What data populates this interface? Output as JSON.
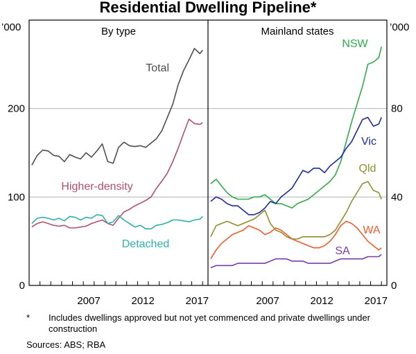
{
  "chart_data": {
    "title": "Residential Dwelling Pipeline*",
    "footnote_mark": "*",
    "footnote": "Includes dwellings approved but not yet commenced and private dwellings under construction",
    "sources": "Sources: ABS; RBA",
    "panels": [
      {
        "type": "line",
        "title": "By type",
        "ylabel": "’000",
        "ylim": [
          0,
          300
        ],
        "yticks": [
          0,
          100,
          200
        ],
        "xlim": [
          2002.0,
          2018.5
        ],
        "xticks": [
          2007,
          2012,
          2017
        ],
        "gridlines": [
          100,
          200
        ],
        "series": [
          {
            "name": "Total",
            "color": "#4d4d4d",
            "x": [
              2002.25,
              2002.75,
              2003.25,
              2003.75,
              2004.25,
              2004.75,
              2005.25,
              2005.75,
              2006.25,
              2006.75,
              2007.25,
              2007.75,
              2008.25,
              2008.75,
              2009.25,
              2009.75,
              2010.25,
              2010.75,
              2011.25,
              2011.75,
              2012.25,
              2012.75,
              2013.25,
              2013.75,
              2014.25,
              2014.75,
              2015.25,
              2015.75,
              2016.25,
              2016.75,
              2017.25,
              2017.75,
              2018.0
            ],
            "y": [
              136,
              147,
              153,
              152,
              147,
              146,
              140,
              148,
              145,
              143,
              150,
              145,
              152,
              160,
              140,
              138,
              156,
              162,
              158,
              157,
              158,
              156,
              161,
              166,
              175,
              190,
              205,
              227,
              243,
              255,
              268,
              262,
              266
            ]
          },
          {
            "name": "Higher-density",
            "color": "#b14f6a",
            "x": [
              2002.25,
              2002.75,
              2003.25,
              2003.75,
              2004.25,
              2004.75,
              2005.25,
              2005.75,
              2006.25,
              2006.75,
              2007.25,
              2007.75,
              2008.25,
              2008.75,
              2009.25,
              2009.75,
              2010.25,
              2010.75,
              2011.25,
              2011.75,
              2012.25,
              2012.75,
              2013.25,
              2013.75,
              2014.25,
              2014.75,
              2015.25,
              2015.75,
              2016.25,
              2016.75,
              2017.25,
              2017.75,
              2018.0
            ],
            "y": [
              66,
              70,
              72,
              70,
              68,
              67,
              68,
              65,
              65,
              66,
              67,
              70,
              72,
              74,
              70,
              68,
              76,
              83,
              86,
              90,
              93,
              96,
              100,
              110,
              118,
              127,
              140,
              155,
              172,
              188,
              183,
              182,
              184
            ]
          },
          {
            "name": "Detached",
            "color": "#2ab0a8",
            "x": [
              2002.25,
              2002.75,
              2003.25,
              2003.75,
              2004.25,
              2004.75,
              2005.25,
              2005.75,
              2006.25,
              2006.75,
              2007.25,
              2007.75,
              2008.25,
              2008.75,
              2009.25,
              2009.75,
              2010.25,
              2010.75,
              2011.25,
              2011.75,
              2012.25,
              2012.75,
              2013.25,
              2013.75,
              2014.25,
              2014.75,
              2015.25,
              2015.75,
              2016.25,
              2016.75,
              2017.25,
              2017.75,
              2018.0
            ],
            "y": [
              70,
              76,
              77,
              76,
              74,
              76,
              73,
              78,
              77,
              74,
              77,
              76,
              80,
              79,
              70,
              72,
              79,
              74,
              70,
              66,
              68,
              64,
              64,
              68,
              69,
              71,
              74,
              74,
              73,
              72,
              74,
              75,
              78
            ]
          }
        ],
        "labels": [
          "Total",
          "Higher-density",
          "Detached"
        ]
      },
      {
        "type": "line",
        "title": "Mainland states",
        "ylabel": "’000",
        "ylim": [
          0,
          120
        ],
        "yticks": [
          0,
          40,
          80
        ],
        "xlim": [
          2002.0,
          2018.5
        ],
        "xticks": [
          2007,
          2012,
          2017
        ],
        "gridlines": [
          40,
          80
        ],
        "series": [
          {
            "name": "NSW",
            "color": "#2eaa4a",
            "x": [
              2002.25,
              2002.75,
              2003.25,
              2003.75,
              2004.25,
              2004.75,
              2005.25,
              2005.75,
              2006.25,
              2006.75,
              2007.25,
              2007.75,
              2008.25,
              2008.75,
              2009.25,
              2009.75,
              2010.25,
              2010.75,
              2011.25,
              2011.75,
              2012.25,
              2012.75,
              2013.25,
              2013.75,
              2014.25,
              2014.75,
              2015.25,
              2015.75,
              2016.25,
              2016.75,
              2017.25,
              2017.75,
              2018.0
            ],
            "y": [
              46,
              48,
              45,
              42,
              40,
              39,
              39,
              39,
              40,
              40,
              41,
              39,
              37,
              37,
              36,
              35,
              37,
              38,
              39,
              41,
              43,
              45,
              47,
              50,
              56,
              65,
              74,
              82,
              90,
              100,
              101,
              103,
              108
            ]
          },
          {
            "name": "Vic",
            "color": "#1a2a9a",
            "x": [
              2002.25,
              2002.75,
              2003.25,
              2003.75,
              2004.25,
              2004.75,
              2005.25,
              2005.75,
              2006.25,
              2006.75,
              2007.25,
              2007.75,
              2008.25,
              2008.75,
              2009.25,
              2009.75,
              2010.25,
              2010.75,
              2011.25,
              2011.75,
              2012.25,
              2012.75,
              2013.25,
              2013.75,
              2014.25,
              2014.75,
              2015.25,
              2015.75,
              2016.25,
              2016.75,
              2017.25,
              2017.75,
              2018.0
            ],
            "y": [
              38,
              40,
              39,
              37,
              36,
              36,
              34,
              32,
              32,
              33,
              35,
              38,
              37,
              40,
              42,
              44,
              48,
              52,
              51,
              53,
              53,
              51,
              54,
              56,
              58,
              62,
              65,
              70,
              75,
              76,
              72,
              73,
              76
            ]
          },
          {
            "name": "Qld",
            "color": "#8f8f2a",
            "x": [
              2002.25,
              2002.75,
              2003.25,
              2003.75,
              2004.25,
              2004.75,
              2005.25,
              2005.75,
              2006.25,
              2006.75,
              2007.25,
              2007.75,
              2008.25,
              2008.75,
              2009.25,
              2009.75,
              2010.25,
              2010.75,
              2011.25,
              2011.75,
              2012.25,
              2012.75,
              2013.25,
              2013.75,
              2014.25,
              2014.75,
              2015.25,
              2015.75,
              2016.25,
              2016.75,
              2017.25,
              2017.75,
              2018.0
            ],
            "y": [
              22,
              27,
              28,
              29,
              28,
              27,
              28,
              29,
              30,
              32,
              34,
              28,
              25,
              24,
              22,
              21,
              21,
              22,
              22,
              22,
              22,
              22,
              23,
              25,
              29,
              33,
              38,
              42,
              46,
              47,
              43,
              42,
              39
            ]
          },
          {
            "name": "WA",
            "color": "#f05b2a",
            "x": [
              2002.25,
              2002.75,
              2003.25,
              2003.75,
              2004.25,
              2004.75,
              2005.25,
              2005.75,
              2006.25,
              2006.75,
              2007.25,
              2007.75,
              2008.25,
              2008.75,
              2009.25,
              2009.75,
              2010.25,
              2010.75,
              2011.25,
              2011.75,
              2012.25,
              2012.75,
              2013.25,
              2013.75,
              2014.25,
              2014.75,
              2015.25,
              2015.75,
              2016.25,
              2016.75,
              2017.25,
              2017.75,
              2018.0
            ],
            "y": [
              12,
              16,
              19,
              21,
              23,
              24,
              25,
              27,
              26,
              25,
              23,
              24,
              26,
              25,
              23,
              21,
              20,
              19,
              18,
              17,
              17,
              18,
              20,
              23,
              27,
              29,
              28,
              26,
              23,
              20,
              18,
              16,
              17
            ]
          },
          {
            "name": "SA",
            "color": "#7a3aab",
            "x": [
              2002.25,
              2002.75,
              2003.25,
              2003.75,
              2004.25,
              2004.75,
              2005.25,
              2005.75,
              2006.25,
              2006.75,
              2007.25,
              2007.75,
              2008.25,
              2008.75,
              2009.25,
              2009.75,
              2010.25,
              2010.75,
              2011.25,
              2011.75,
              2012.25,
              2012.75,
              2013.25,
              2013.75,
              2014.25,
              2014.75,
              2015.25,
              2015.75,
              2016.25,
              2016.75,
              2017.25,
              2017.75,
              2018.0
            ],
            "y": [
              8,
              9,
              9,
              9,
              9,
              10,
              10,
              10,
              10,
              10,
              10,
              11,
              12,
              12,
              12,
              11,
              11,
              11,
              10,
              10,
              10,
              10,
              10,
              11,
              12,
              12,
              12,
              12,
              12,
              13,
              13,
              13,
              14
            ]
          }
        ],
        "labels": [
          "NSW",
          "Vic",
          "Qld",
          "WA",
          "SA"
        ]
      }
    ]
  }
}
